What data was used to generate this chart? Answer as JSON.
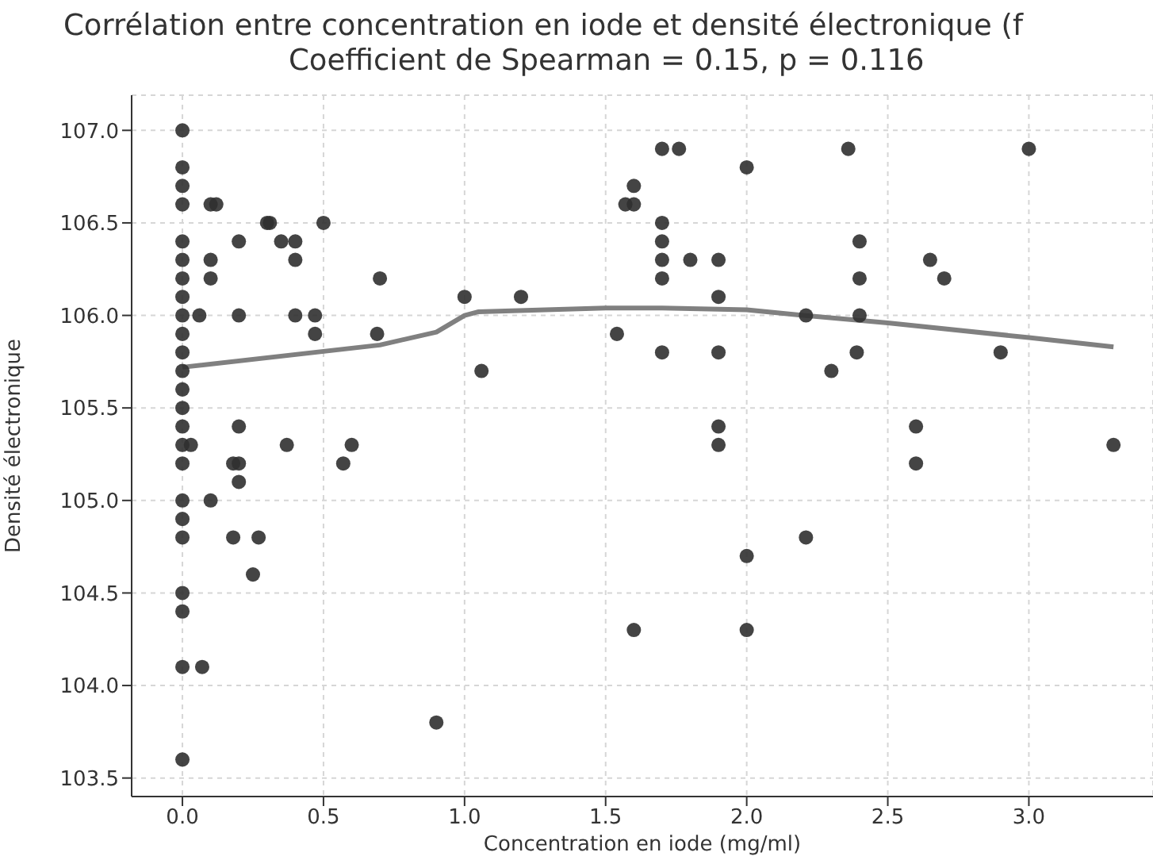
{
  "chart_data": {
    "type": "scatter",
    "title": "Corrélation entre concentration en iode et densité électronique (f",
    "subtitle": "Coefficient de Spearman = 0.15, p = 0.116",
    "xlabel": "Concentration en iode (mg/ml)",
    "ylabel": "Densité électronique",
    "xlim": [
      -0.18,
      3.44
    ],
    "ylim": [
      103.4,
      107.19
    ],
    "xticks": [
      {
        "value": 0,
        "label": "0.0"
      },
      0.5,
      {
        "value": 1,
        "label": "1.0"
      },
      1.5,
      {
        "value": 2,
        "label": "2.0"
      },
      2.5,
      {
        "value": 3,
        "label": "3.0"
      }
    ],
    "yticks": [
      103.5,
      {
        "value": 104,
        "label": "104.0"
      },
      104.5,
      {
        "value": 105,
        "label": "105.0"
      },
      105.5,
      {
        "value": 106,
        "label": "106.0"
      },
      106.5,
      {
        "value": 107,
        "label": "107.0"
      }
    ],
    "grid": true,
    "marker": "circle",
    "series": [
      {
        "type": "scatter",
        "color": "#303030",
        "x": [
          0,
          0,
          0,
          0,
          0,
          0,
          0,
          0,
          0,
          0,
          0,
          0,
          0,
          0,
          0,
          0,
          0,
          0,
          0,
          0,
          0,
          0,
          0,
          0,
          0.03,
          0.06,
          0.07,
          0.1,
          0.12,
          0.1,
          0.1,
          0.1,
          0.2,
          0.2,
          0.2,
          0.18,
          0.2,
          0.2,
          0.18,
          0.27,
          0.25,
          0.3,
          0.31,
          0.35,
          0.4,
          0.4,
          0.4,
          0.37,
          0.47,
          0.47,
          0.5,
          0.57,
          0.6,
          0.7,
          0.69,
          0.9,
          1.0,
          1.2,
          1.06,
          1.54,
          1.57,
          1.6,
          1.6,
          1.7,
          1.76,
          1.7,
          1.7,
          1.7,
          1.7,
          1.8,
          1.9,
          1.9,
          1.7,
          1.9,
          1.9,
          1.9,
          2.0,
          2.0,
          1.6,
          2.0,
          2.21,
          2.21,
          2.36,
          3.0,
          2.4,
          2.4,
          2.4,
          2.39,
          2.3,
          2.65,
          2.7,
          2.9,
          2.6,
          2.6,
          3.3
        ],
        "values": [
          107.0,
          106.8,
          106.7,
          106.6,
          106.4,
          106.3,
          106.2,
          106.1,
          106.0,
          105.9,
          105.8,
          105.7,
          105.6,
          105.5,
          105.4,
          105.3,
          105.2,
          105.0,
          104.9,
          104.8,
          104.5,
          104.4,
          104.1,
          103.6,
          105.3,
          106.0,
          104.1,
          106.6,
          106.6,
          106.3,
          106.2,
          105.0,
          106.4,
          106.0,
          105.4,
          105.2,
          105.2,
          105.1,
          104.8,
          104.8,
          104.6,
          106.5,
          106.5,
          106.4,
          106.4,
          106.3,
          106.0,
          105.3,
          106.0,
          105.9,
          106.5,
          105.2,
          105.3,
          106.2,
          105.9,
          103.8,
          106.1,
          106.1,
          105.7,
          105.9,
          106.6,
          106.6,
          106.7,
          106.9,
          106.9,
          106.5,
          106.4,
          106.3,
          106.2,
          106.3,
          106.3,
          106.1,
          105.8,
          105.8,
          105.4,
          105.3,
          106.8,
          104.7,
          104.3,
          104.3,
          106.0,
          104.8,
          106.9,
          106.9,
          106.4,
          106.2,
          106.0,
          105.8,
          105.7,
          106.3,
          106.2,
          105.8,
          105.4,
          105.2,
          105.3
        ]
      },
      {
        "type": "line",
        "color": "#808080",
        "marker": "none",
        "x": [
          0,
          0.7,
          0.9,
          1.0,
          1.05,
          1.5,
          1.7,
          2.0,
          2.2,
          2.5,
          3.0,
          3.3
        ],
        "values": [
          105.72,
          105.84,
          105.91,
          106.0,
          106.02,
          106.04,
          106.04,
          106.03,
          106.0,
          105.96,
          105.88,
          105.83
        ]
      }
    ]
  }
}
